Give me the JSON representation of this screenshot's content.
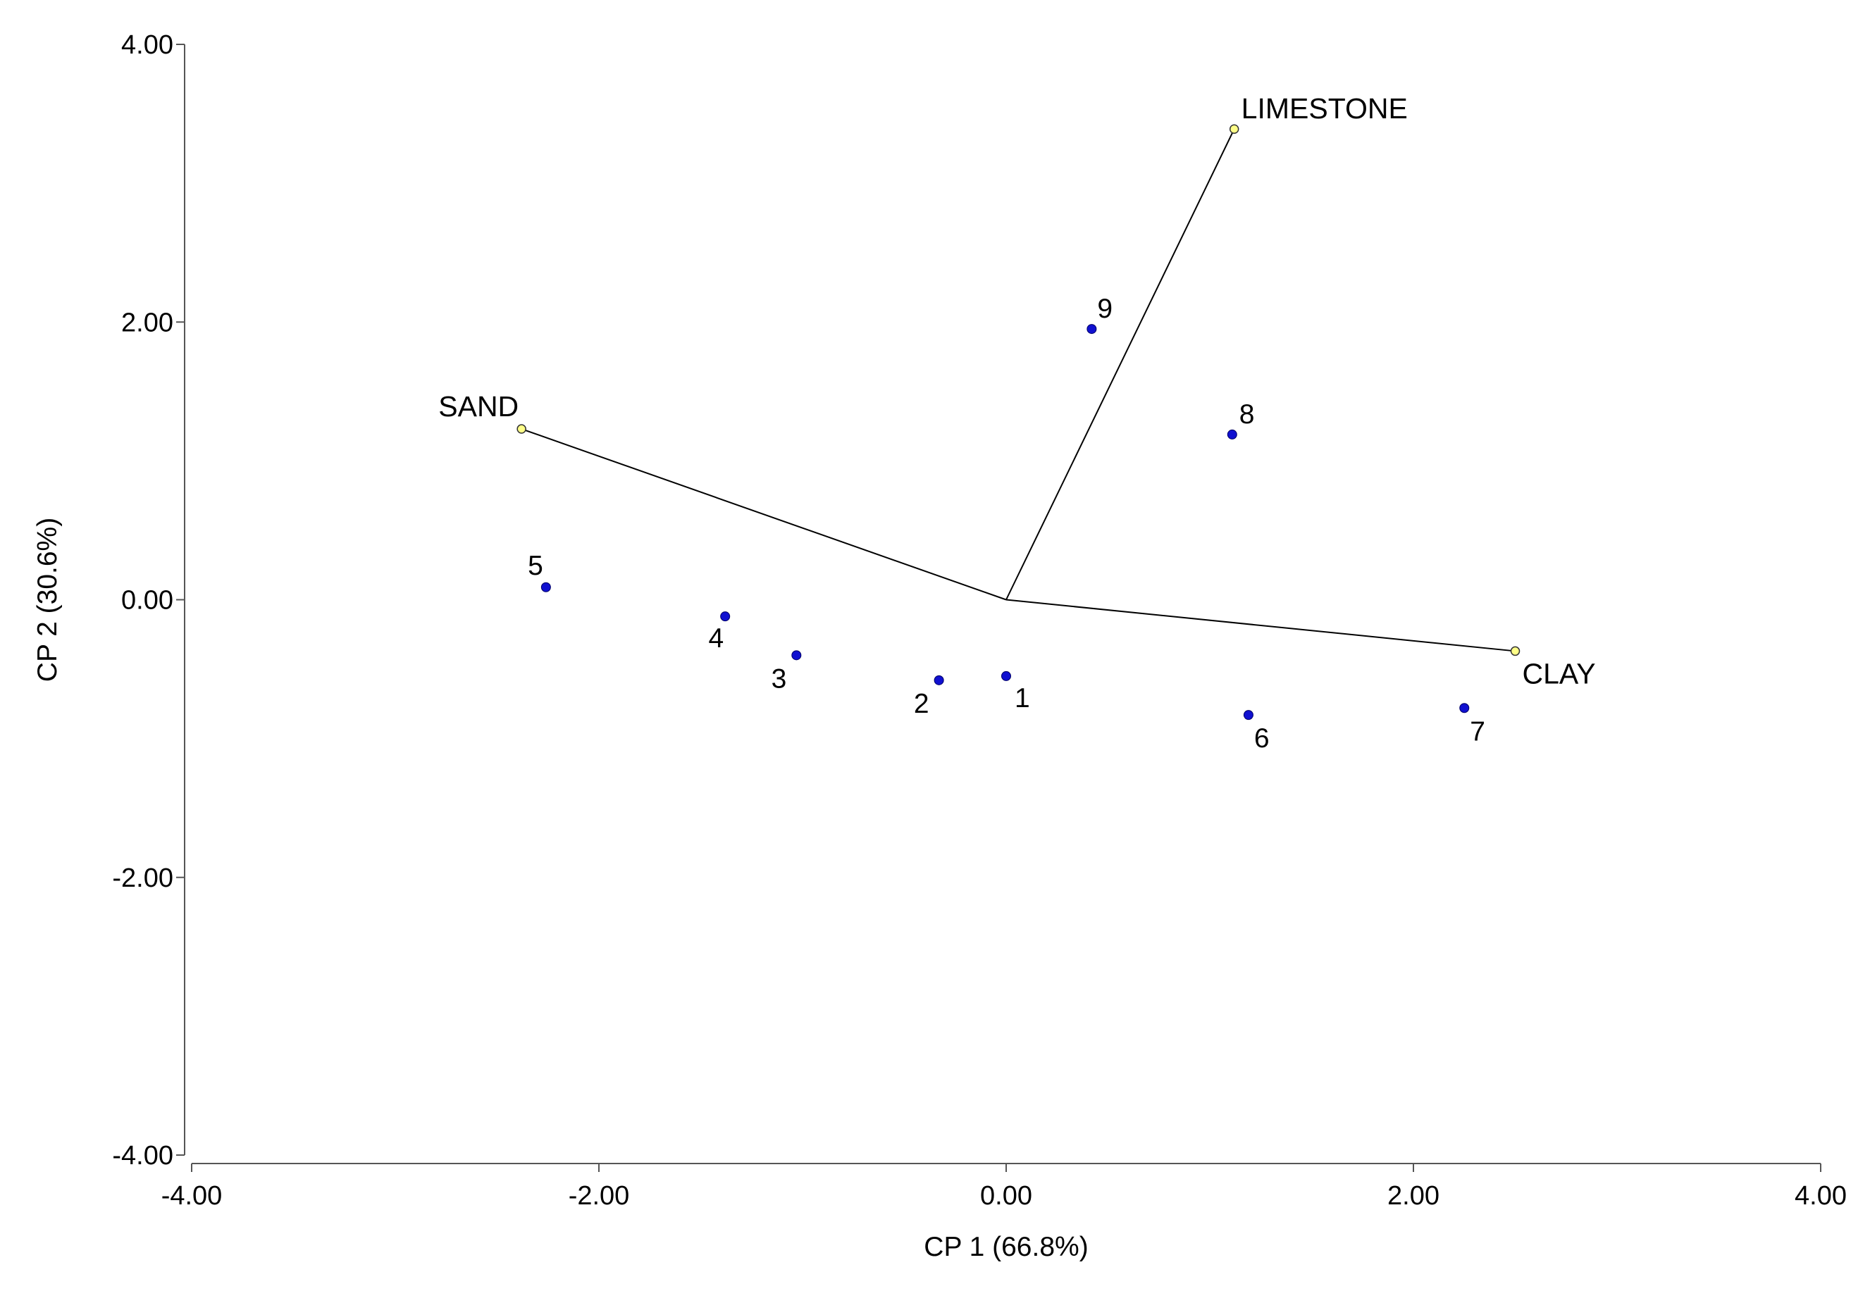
{
  "chart_data": {
    "type": "scatter",
    "title": "",
    "xlabel": "CP 1 (66.8%)",
    "ylabel": "CP 2 (30.6%)",
    "xlim": [
      -4,
      4
    ],
    "ylim": [
      -4,
      4
    ],
    "x_ticks": [
      "-4.00",
      "-2.00",
      "0.00",
      "2.00",
      "4.00"
    ],
    "y_ticks": [
      "-4.00",
      "-2.00",
      "0.00",
      "2.00",
      "4.00"
    ],
    "grid": false,
    "legend": "none",
    "colors": {
      "points": "#1010d0",
      "vectors": "#ffff88",
      "lines": "#000000"
    },
    "points": [
      {
        "label": "1",
        "x": 0.0,
        "y": -0.55
      },
      {
        "label": "2",
        "x": -0.33,
        "y": -0.58
      },
      {
        "label": "3",
        "x": -1.03,
        "y": -0.4
      },
      {
        "label": "4",
        "x": -1.38,
        "y": -0.12
      },
      {
        "label": "5",
        "x": -2.26,
        "y": 0.09
      },
      {
        "label": "6",
        "x": 1.19,
        "y": -0.83
      },
      {
        "label": "7",
        "x": 2.25,
        "y": -0.78
      },
      {
        "label": "8",
        "x": 1.11,
        "y": 1.19
      },
      {
        "label": "9",
        "x": 0.42,
        "y": 1.95
      }
    ],
    "vectors": [
      {
        "label": "LIMESTONE",
        "x": 1.12,
        "y": 3.39
      },
      {
        "label": "SAND",
        "x": -2.38,
        "y": 1.23
      },
      {
        "label": "CLAY",
        "x": 2.5,
        "y": -0.37
      }
    ]
  }
}
